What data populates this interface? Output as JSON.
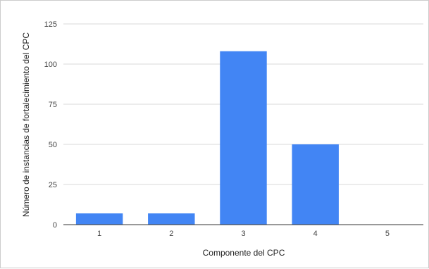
{
  "chart_data": {
    "type": "bar",
    "title": "",
    "xlabel": "Componente del CPC",
    "ylabel": "Número de instancias de fortalecimiento del CPC",
    "categories": [
      "1",
      "2",
      "3",
      "4",
      "5"
    ],
    "values": [
      7,
      7,
      108,
      50,
      0
    ],
    "ylim": [
      0,
      125
    ],
    "yticks": [
      "0",
      "25",
      "50",
      "75",
      "100",
      "125"
    ],
    "grid": true,
    "legend": "none",
    "bar_color": "#4285f4",
    "grid_color": "#d9d9d9",
    "axis_color": "#333333"
  }
}
